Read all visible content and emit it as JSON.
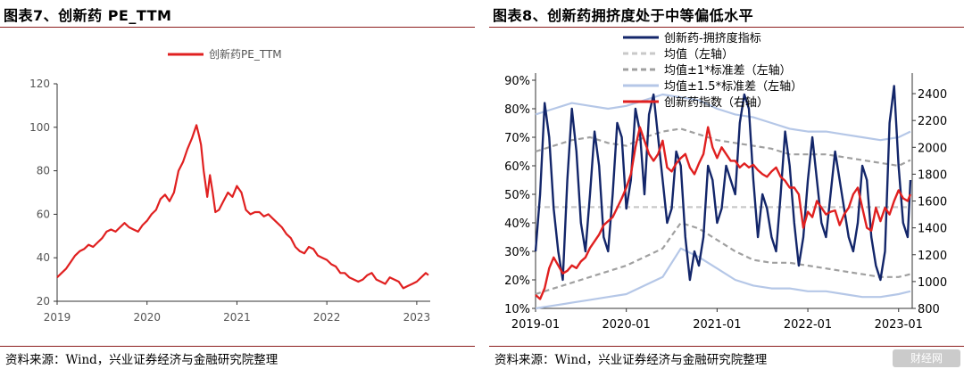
{
  "left_panel": {
    "title": "图表7、创新药 PE_TTM",
    "source": "资料来源：Wind，兴业证券经济与金融研究院整理"
  },
  "right_panel": {
    "title": "图表8、创新药拥挤度处于中等偏低水平",
    "source": "资料来源：Wind，兴业证券经济与金融研究院整理"
  },
  "watermark": "财经网",
  "chart_data": [
    {
      "type": "line",
      "title": "",
      "xlabel": "",
      "ylabel": "",
      "x_ticks": [
        "2019",
        "2020",
        "2021",
        "2022",
        "2023"
      ],
      "x_range": [
        2019.0,
        2023.15
      ],
      "y_ticks": [
        20,
        40,
        60,
        80,
        100,
        120
      ],
      "ylim": [
        20,
        120
      ],
      "grid": false,
      "legend_position": "top-center",
      "series": [
        {
          "name": "创新药PE_TTM",
          "color": "#e02020",
          "x": [
            2019.0,
            2019.05,
            2019.1,
            2019.15,
            2019.2,
            2019.25,
            2019.3,
            2019.35,
            2019.4,
            2019.45,
            2019.5,
            2019.55,
            2019.6,
            2019.65,
            2019.7,
            2019.75,
            2019.8,
            2019.85,
            2019.9,
            2019.95,
            2020.0,
            2020.05,
            2020.1,
            2020.15,
            2020.2,
            2020.25,
            2020.3,
            2020.35,
            2020.4,
            2020.45,
            2020.5,
            2020.55,
            2020.58,
            2020.6,
            2020.63,
            2020.67,
            2020.7,
            2020.73,
            2020.76,
            2020.8,
            2020.85,
            2020.9,
            2020.95,
            2021.0,
            2021.05,
            2021.1,
            2021.15,
            2021.2,
            2021.25,
            2021.3,
            2021.35,
            2021.4,
            2021.45,
            2021.5,
            2021.55,
            2021.6,
            2021.65,
            2021.7,
            2021.75,
            2021.8,
            2021.85,
            2021.9,
            2021.95,
            2022.0,
            2022.05,
            2022.1,
            2022.15,
            2022.2,
            2022.25,
            2022.3,
            2022.35,
            2022.4,
            2022.45,
            2022.5,
            2022.55,
            2022.6,
            2022.65,
            2022.7,
            2022.75,
            2022.8,
            2022.85,
            2022.9,
            2022.95,
            2023.0,
            2023.05,
            2023.1,
            2023.13
          ],
          "values": [
            31,
            33,
            35,
            38,
            41,
            43,
            44,
            46,
            45,
            47,
            49,
            52,
            53,
            52,
            54,
            56,
            54,
            53,
            52,
            55,
            57,
            60,
            62,
            67,
            69,
            66,
            70,
            80,
            84,
            90,
            95,
            101,
            96,
            92,
            80,
            68,
            78,
            70,
            61,
            62,
            66,
            70,
            68,
            73,
            70,
            62,
            60,
            61,
            61,
            59,
            60,
            58,
            56,
            54,
            51,
            49,
            45,
            43,
            42,
            45,
            44,
            41,
            40,
            39,
            37,
            36,
            33,
            33,
            31,
            30,
            29,
            30,
            32,
            33,
            30,
            29,
            28,
            31,
            30,
            29,
            26,
            27,
            28,
            29,
            31,
            33,
            32
          ]
        }
      ]
    },
    {
      "type": "line",
      "title": "",
      "xlabel": "",
      "ylabel": "",
      "x_ticks": [
        "2019-01",
        "2020-01",
        "2021-01",
        "2022-01",
        "2023-01"
      ],
      "x_range": [
        2019.0,
        2023.15
      ],
      "y_left_ticks": [
        "10%",
        "20%",
        "30%",
        "40%",
        "50%",
        "60%",
        "70%",
        "80%",
        "90%"
      ],
      "y_left_range": [
        10,
        90
      ],
      "y_right_ticks": [
        800,
        1000,
        1200,
        1400,
        1600,
        1800,
        2000,
        2200,
        2400
      ],
      "y_right_range": [
        800,
        2500
      ],
      "grid": false,
      "legend_position": "top-center",
      "series": [
        {
          "name": "创新药-拥挤度指标",
          "axis": "left",
          "color": "#13266a",
          "style": "solid",
          "x": [
            2019.0,
            2019.05,
            2019.1,
            2019.15,
            2019.2,
            2019.25,
            2019.3,
            2019.35,
            2019.4,
            2019.45,
            2019.5,
            2019.55,
            2019.6,
            2019.65,
            2019.7,
            2019.75,
            2019.8,
            2019.85,
            2019.9,
            2019.95,
            2020.0,
            2020.05,
            2020.1,
            2020.15,
            2020.2,
            2020.25,
            2020.3,
            2020.35,
            2020.4,
            2020.45,
            2020.5,
            2020.55,
            2020.6,
            2020.65,
            2020.7,
            2020.75,
            2020.8,
            2020.85,
            2020.9,
            2020.95,
            2021.0,
            2021.05,
            2021.1,
            2021.15,
            2021.2,
            2021.25,
            2021.3,
            2021.35,
            2021.4,
            2021.45,
            2021.5,
            2021.55,
            2021.6,
            2021.65,
            2021.7,
            2021.75,
            2021.8,
            2021.85,
            2021.9,
            2021.95,
            2022.0,
            2022.05,
            2022.1,
            2022.15,
            2022.2,
            2022.25,
            2022.3,
            2022.35,
            2022.4,
            2022.45,
            2022.5,
            2022.55,
            2022.6,
            2022.65,
            2022.7,
            2022.75,
            2022.8,
            2022.85,
            2022.9,
            2022.95,
            2023.0,
            2023.05,
            2023.1,
            2023.13
          ],
          "values": [
            30,
            50,
            82,
            70,
            45,
            30,
            20,
            55,
            80,
            65,
            40,
            30,
            50,
            72,
            60,
            35,
            30,
            50,
            75,
            70,
            45,
            55,
            80,
            72,
            50,
            78,
            85,
            70,
            55,
            40,
            45,
            65,
            60,
            35,
            20,
            30,
            25,
            35,
            60,
            55,
            40,
            45,
            60,
            55,
            50,
            75,
            85,
            80,
            55,
            35,
            50,
            45,
            35,
            30,
            50,
            72,
            60,
            40,
            25,
            35,
            55,
            70,
            55,
            40,
            35,
            50,
            65,
            55,
            45,
            35,
            30,
            40,
            60,
            55,
            35,
            25,
            20,
            30,
            75,
            88,
            60,
            40,
            35,
            55
          ]
        },
        {
          "name": "均值（左轴）",
          "axis": "left",
          "color": "#c9c9c9",
          "style": "dashed",
          "x": [
            2019.0,
            2023.13
          ],
          "values": [
            45.5,
            45.5
          ]
        },
        {
          "name": "均值±1*标准差（左轴）",
          "axis": "left",
          "color": "#a0a0a0",
          "style": "dashed",
          "x": [
            2019.0,
            2019.2,
            2019.4,
            2019.6,
            2019.8,
            2020.0,
            2020.2,
            2020.4,
            2020.6,
            2020.8,
            2021.0,
            2021.2,
            2021.4,
            2021.6,
            2021.8,
            2022.0,
            2022.2,
            2022.4,
            2022.6,
            2022.8,
            2023.0,
            2023.13
          ],
          "values": [
            65,
            67,
            69,
            70,
            68,
            67,
            70,
            72,
            73,
            71,
            69,
            68,
            67,
            66,
            64,
            64,
            64,
            63,
            62,
            61,
            60,
            62
          ],
          "values_lower": [
            15,
            17,
            19,
            21,
            23,
            25,
            28,
            31,
            40,
            38,
            34,
            30,
            27,
            26,
            26,
            25,
            24,
            23,
            22,
            21,
            21,
            22
          ]
        },
        {
          "name": "均值±1.5*标准差（左轴）",
          "axis": "left",
          "color": "#b5c7e7",
          "style": "solid",
          "x": [
            2019.0,
            2019.2,
            2019.4,
            2019.6,
            2019.8,
            2020.0,
            2020.2,
            2020.4,
            2020.6,
            2020.8,
            2021.0,
            2021.2,
            2021.4,
            2021.6,
            2021.8,
            2022.0,
            2022.2,
            2022.4,
            2022.6,
            2022.8,
            2023.0,
            2023.13
          ],
          "values": [
            78,
            80,
            82,
            81,
            80,
            81,
            83,
            85,
            84,
            83,
            80,
            78,
            77,
            75,
            73,
            72,
            72,
            71,
            70,
            69,
            70,
            72
          ],
          "values_lower": [
            10,
            11,
            12,
            13,
            14,
            15,
            18,
            21,
            31,
            28,
            24,
            20,
            18,
            17,
            17,
            16,
            16,
            15,
            14,
            14,
            15,
            16
          ]
        },
        {
          "name": "创新药指数（右轴）",
          "axis": "right",
          "color": "#e02020",
          "style": "solid",
          "x": [
            2019.0,
            2019.05,
            2019.1,
            2019.15,
            2019.2,
            2019.25,
            2019.3,
            2019.35,
            2019.4,
            2019.45,
            2019.5,
            2019.55,
            2019.6,
            2019.65,
            2019.7,
            2019.75,
            2019.8,
            2019.85,
            2019.9,
            2019.95,
            2020.0,
            2020.05,
            2020.1,
            2020.15,
            2020.2,
            2020.25,
            2020.3,
            2020.35,
            2020.4,
            2020.45,
            2020.5,
            2020.55,
            2020.6,
            2020.65,
            2020.7,
            2020.75,
            2020.8,
            2020.85,
            2020.9,
            2020.95,
            2021.0,
            2021.05,
            2021.1,
            2021.15,
            2021.2,
            2021.25,
            2021.3,
            2021.35,
            2021.4,
            2021.45,
            2021.5,
            2021.55,
            2021.6,
            2021.65,
            2021.7,
            2021.75,
            2021.8,
            2021.85,
            2021.9,
            2021.95,
            2022.0,
            2022.05,
            2022.1,
            2022.15,
            2022.2,
            2022.25,
            2022.3,
            2022.35,
            2022.4,
            2022.45,
            2022.5,
            2022.55,
            2022.6,
            2022.65,
            2022.7,
            2022.75,
            2022.8,
            2022.85,
            2022.9,
            2022.95,
            2023.0,
            2023.05,
            2023.1,
            2023.13
          ],
          "values": [
            900,
            870,
            950,
            1100,
            1180,
            1120,
            1060,
            1080,
            1120,
            1100,
            1150,
            1180,
            1250,
            1300,
            1350,
            1420,
            1450,
            1480,
            1550,
            1620,
            1700,
            1800,
            2000,
            2150,
            2050,
            1950,
            1900,
            1950,
            2050,
            1850,
            1820,
            1880,
            1920,
            1950,
            1850,
            1800,
            1880,
            1950,
            2150,
            2000,
            1920,
            2000,
            1950,
            1900,
            1900,
            1850,
            1880,
            1850,
            1870,
            1830,
            1800,
            1780,
            1820,
            1850,
            1780,
            1750,
            1700,
            1700,
            1650,
            1400,
            1520,
            1480,
            1600,
            1550,
            1500,
            1520,
            1530,
            1420,
            1500,
            1550,
            1650,
            1700,
            1550,
            1400,
            1380,
            1550,
            1450,
            1550,
            1500,
            1600,
            1680,
            1620,
            1600,
            1650
          ]
        }
      ]
    }
  ]
}
